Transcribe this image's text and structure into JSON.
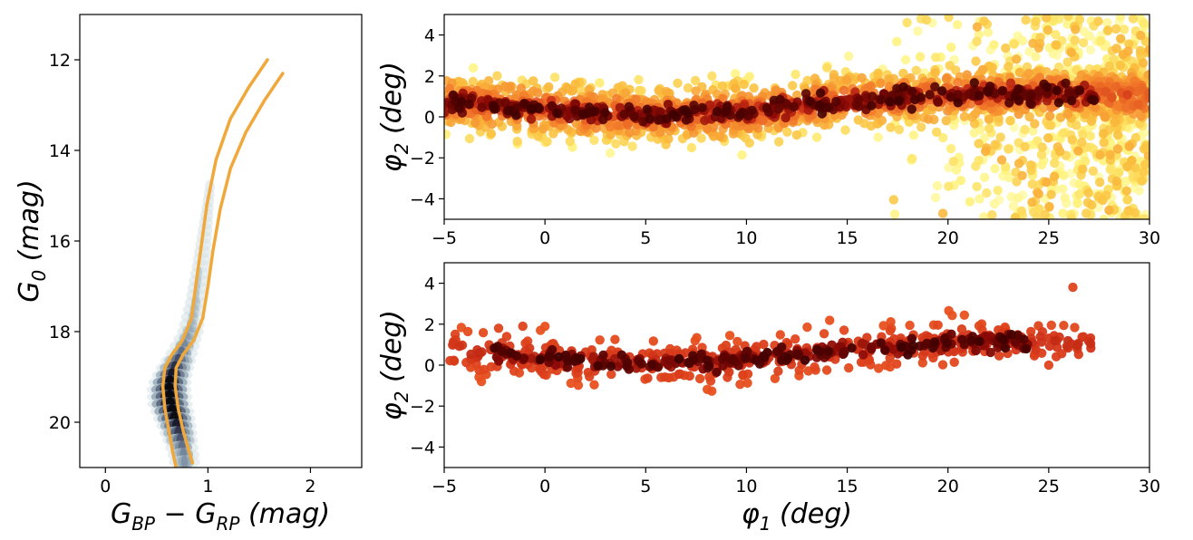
{
  "chart_data": [
    {
      "type": "heatmap",
      "panel": "cmd",
      "xlabel": "G_BP − G_RP (mag)",
      "xlabel_parts": [
        "G",
        "BP",
        " − ",
        "G",
        "RP",
        " (mag)"
      ],
      "ylabel": "G_0 (mag)",
      "ylabel_parts": [
        "G",
        "0",
        " (mag)"
      ],
      "xlim": [
        -0.25,
        2.5
      ],
      "ylim": [
        21.0,
        11.0
      ],
      "y_inverted": true,
      "xticks": [
        "0",
        "1",
        "2"
      ],
      "xtick_values": [
        0,
        1,
        2
      ],
      "yticks": [
        "12",
        "14",
        "16",
        "18",
        "20"
      ],
      "ytick_values": [
        12,
        14,
        16,
        18,
        20
      ],
      "density": {
        "colormap": "bone_r",
        "color_low": "#dfe8ea",
        "color_high": "#0a0a14",
        "ridge": [
          [
            1.02,
            14.8
          ],
          [
            0.98,
            15.6
          ],
          [
            0.93,
            16.6
          ],
          [
            0.88,
            17.4
          ],
          [
            0.83,
            18.0
          ],
          [
            0.74,
            18.5
          ],
          [
            0.66,
            18.9
          ],
          [
            0.62,
            19.2
          ],
          [
            0.63,
            19.6
          ],
          [
            0.67,
            19.9
          ],
          [
            0.72,
            20.3
          ],
          [
            0.76,
            20.7
          ],
          [
            0.78,
            21.0
          ]
        ],
        "peak": [
          0.64,
          19.5
        ]
      },
      "isochrone_color": "#f0a83a",
      "isochrones": [
        {
          "points": [
            [
              1.58,
              12.0
            ],
            [
              1.4,
              12.6
            ],
            [
              1.22,
              13.3
            ],
            [
              1.08,
              14.2
            ],
            [
              0.99,
              15.2
            ],
            [
              0.93,
              16.2
            ],
            [
              0.88,
              17.0
            ],
            [
              0.84,
              17.7
            ],
            [
              0.75,
              18.2
            ],
            [
              0.65,
              18.5
            ],
            [
              0.58,
              18.8
            ],
            [
              0.56,
              19.2
            ],
            [
              0.58,
              19.7
            ],
            [
              0.62,
              20.2
            ],
            [
              0.66,
              20.7
            ],
            [
              0.69,
              21.0
            ]
          ]
        },
        {
          "points": [
            [
              1.73,
              12.3
            ],
            [
              1.55,
              12.9
            ],
            [
              1.37,
              13.6
            ],
            [
              1.22,
              14.4
            ],
            [
              1.12,
              15.3
            ],
            [
              1.05,
              16.2
            ],
            [
              1.0,
              17.0
            ],
            [
              0.95,
              17.7
            ],
            [
              0.86,
              18.2
            ],
            [
              0.76,
              18.5
            ],
            [
              0.69,
              18.8
            ],
            [
              0.68,
              19.2
            ],
            [
              0.71,
              19.7
            ],
            [
              0.76,
              20.2
            ],
            [
              0.81,
              20.6
            ],
            [
              0.85,
              20.9
            ]
          ]
        }
      ]
    },
    {
      "type": "scatter",
      "panel": "sky-all",
      "ylabel": "φ2 (deg)",
      "ylabel_parts": [
        "φ",
        "2",
        " (deg)"
      ],
      "xlim": [
        -5,
        30
      ],
      "ylim": [
        -5,
        5
      ],
      "xticks": [
        "−5",
        "0",
        "5",
        "10",
        "15",
        "20",
        "25",
        "30"
      ],
      "xtick_values": [
        -5,
        0,
        5,
        10,
        15,
        20,
        25,
        30
      ],
      "yticks": [
        "−4",
        "−2",
        "0",
        "2",
        "4"
      ],
      "ytick_values": [
        -4,
        -2,
        0,
        2,
        4
      ],
      "colormap": "afmhot",
      "color_stops": [
        "#3d0000",
        "#8b0a06",
        "#d23418",
        "#f2792a",
        "#fbc23f",
        "#fff27a",
        "#fffab0"
      ],
      "track": [
        [
          -5,
          0.7
        ],
        [
          -2,
          0.55
        ],
        [
          0,
          0.35
        ],
        [
          3,
          0.2
        ],
        [
          6,
          0.1
        ],
        [
          10,
          0.25
        ],
        [
          14,
          0.7
        ],
        [
          18,
          0.95
        ],
        [
          22,
          1.15
        ],
        [
          26,
          1.1
        ],
        [
          30,
          1.0
        ]
      ],
      "stream_width_deg": 0.45,
      "scatter_width_deg": 1.3,
      "background_region": {
        "phi1": [
          16.5,
          30
        ],
        "phi2": [
          -5,
          5
        ],
        "weight": "increasing"
      },
      "n_points": 2500
    },
    {
      "type": "scatter",
      "panel": "sky-members",
      "xlabel": "φ1 (deg)",
      "xlabel_parts": [
        "φ",
        "1",
        " (deg)"
      ],
      "ylabel": "φ2 (deg)",
      "ylabel_parts": [
        "φ",
        "2",
        " (deg)"
      ],
      "xlim": [
        -5,
        30
      ],
      "ylim": [
        -5,
        5
      ],
      "xticks": [
        "−5",
        "0",
        "5",
        "10",
        "15",
        "20",
        "25",
        "30"
      ],
      "xtick_values": [
        -5,
        0,
        5,
        10,
        15,
        20,
        25,
        30
      ],
      "yticks": [
        "−4",
        "−2",
        "0",
        "2",
        "4"
      ],
      "ytick_values": [
        -4,
        -2,
        0,
        2,
        4
      ],
      "colormap": "afmhot",
      "color_stops": [
        "#3d0000",
        "#8b0a06",
        "#d23418",
        "#e8501f"
      ],
      "track": [
        [
          -5,
          0.7
        ],
        [
          -2,
          0.55
        ],
        [
          0,
          0.35
        ],
        [
          3,
          0.2
        ],
        [
          6,
          0.1
        ],
        [
          10,
          0.25
        ],
        [
          14,
          0.7
        ],
        [
          18,
          0.95
        ],
        [
          22,
          1.15
        ],
        [
          26,
          1.1
        ],
        [
          27,
          1.0
        ]
      ],
      "stream_width_deg": 0.45,
      "scatter_width_deg": 0.9,
      "phi1_range": [
        -4.8,
        27.1
      ],
      "n_points": 650,
      "outliers": [
        [
          26.2,
          3.8
        ],
        [
          -2.3,
          1.8
        ],
        [
          -1.1,
          1.9
        ],
        [
          -1.9,
          1.4
        ],
        [
          -4.5,
          0.2
        ],
        [
          25.0,
          0.0
        ]
      ]
    }
  ]
}
